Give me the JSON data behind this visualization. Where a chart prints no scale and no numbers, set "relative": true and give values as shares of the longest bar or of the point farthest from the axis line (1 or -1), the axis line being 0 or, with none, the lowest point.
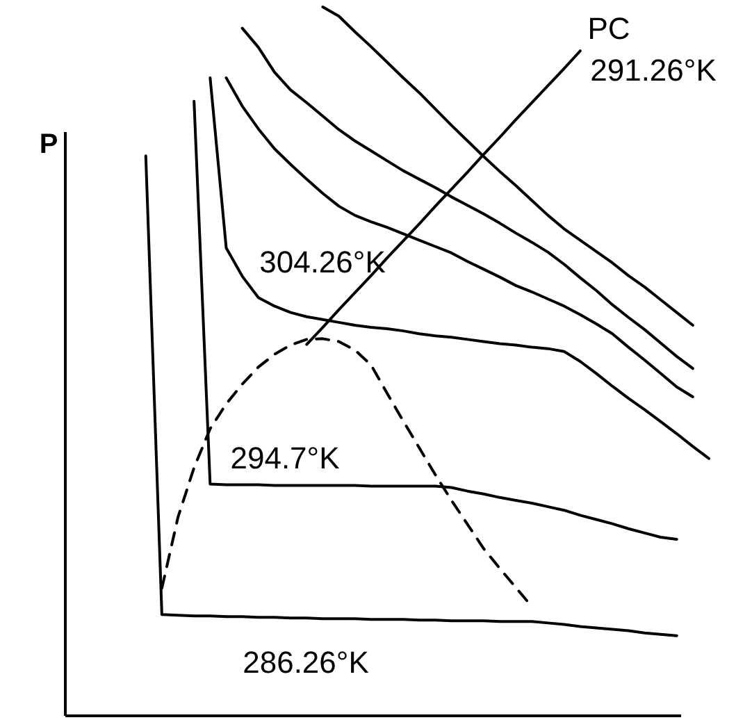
{
  "chart_data": {
    "type": "line",
    "relative": true,
    "ylabel": "P",
    "marker": "none",
    "categories": [
      null,
      null,
      null,
      null,
      null,
      null,
      null,
      null,
      null,
      null,
      null,
      null,
      null,
      null,
      null,
      null,
      null,
      null,
      null,
      null,
      null,
      null,
      null,
      null,
      null,
      null,
      null,
      null,
      null,
      null,
      null,
      null,
      null,
      null,
      null,
      null,
      null,
      null,
      null,
      null,
      null
    ],
    "series": [
      {
        "color": "#000000",
        "values": [
          null,
          null,
          null,
          null,
          null,
          0.79,
          0.143,
          0.142,
          0.141,
          0.141,
          0.14,
          0.14,
          0.139,
          0.139,
          0.138,
          0.138,
          0.137,
          0.137,
          0.137,
          0.136,
          0.136,
          0.136,
          0.135,
          0.135,
          0.134,
          0.134,
          0.134,
          0.133,
          0.133,
          0.133,
          0.131,
          0.129,
          0.126,
          0.124,
          0.122,
          0.12,
          0.117,
          0.115,
          0.113,
          null,
          null
        ]
      },
      {
        "color": "#000000",
        "values": [
          null,
          null,
          null,
          null,
          null,
          null,
          null,
          null,
          0.867,
          0.327,
          0.326,
          0.326,
          0.326,
          0.325,
          0.325,
          0.325,
          0.325,
          0.325,
          0.325,
          0.324,
          0.324,
          0.324,
          0.324,
          0.324,
          0.322,
          0.317,
          0.313,
          0.308,
          0.304,
          0.3,
          0.295,
          0.29,
          0.283,
          0.277,
          0.271,
          0.264,
          0.258,
          0.252,
          0.249,
          null,
          null
        ]
      },
      {
        "color": "#000000",
        "values": [
          null,
          null,
          null,
          null,
          null,
          null,
          null,
          null,
          null,
          0.9,
          0.66,
          0.62,
          0.59,
          0.578,
          0.569,
          0.563,
          0.559,
          0.555,
          0.551,
          0.548,
          0.546,
          0.543,
          0.539,
          0.536,
          0.534,
          0.531,
          0.528,
          0.525,
          0.523,
          0.52,
          0.518,
          0.514,
          0.5,
          0.483,
          0.465,
          0.448,
          0.432,
          0.415,
          0.398,
          0.38,
          0.363
        ]
      },
      {
        "color": "#000000",
        "values": [
          null,
          null,
          null,
          null,
          null,
          null,
          null,
          null,
          null,
          null,
          0.9,
          0.86,
          0.828,
          0.8,
          0.778,
          0.757,
          0.737,
          0.719,
          0.706,
          0.697,
          0.689,
          0.68,
          0.671,
          0.662,
          0.653,
          0.641,
          0.63,
          0.619,
          0.607,
          0.598,
          0.588,
          0.578,
          0.566,
          0.553,
          0.539,
          0.52,
          0.502,
          0.483,
          0.464,
          0.45,
          null
        ]
      },
      {
        "color": "#000000",
        "values": [
          null,
          null,
          null,
          null,
          null,
          null,
          null,
          null,
          null,
          null,
          null,
          0.97,
          0.943,
          0.908,
          0.883,
          0.865,
          0.846,
          0.827,
          0.811,
          0.797,
          0.783,
          0.769,
          0.757,
          0.745,
          0.732,
          0.72,
          0.708,
          0.695,
          0.681,
          0.668,
          0.654,
          0.637,
          0.618,
          0.6,
          0.58,
          0.562,
          0.545,
          0.526,
          0.507,
          0.49,
          null
        ]
      },
      {
        "color": "#000000",
        "values": [
          null,
          null,
          null,
          null,
          null,
          null,
          null,
          null,
          null,
          null,
          null,
          null,
          null,
          null,
          null,
          null,
          1.0,
          0.987,
          0.965,
          0.944,
          0.922,
          0.9,
          0.879,
          0.856,
          0.833,
          0.811,
          0.789,
          0.768,
          0.748,
          0.727,
          0.706,
          0.687,
          0.671,
          0.655,
          0.639,
          0.621,
          0.605,
          0.587,
          0.569,
          0.551,
          null
        ]
      },
      {
        "color": "#000000",
        "line_style": "dashed",
        "values": [
          null,
          null,
          null,
          null,
          null,
          null,
          0.18,
          0.28,
          0.35,
          0.405,
          0.44,
          0.468,
          0.492,
          0.51,
          0.523,
          0.531,
          0.532,
          0.528,
          0.516,
          0.495,
          0.455,
          0.416,
          0.378,
          0.34,
          0.304,
          0.27,
          0.236,
          0.208,
          0.181,
          0.154,
          null,
          null,
          null,
          null,
          null,
          null,
          null,
          null,
          null,
          null,
          null
        ]
      },
      {
        "color": "#000000",
        "values": [
          null,
          null,
          null,
          null,
          null,
          null,
          null,
          null,
          null,
          null,
          null,
          null,
          null,
          null,
          null,
          0.524,
          0.548,
          0.573,
          0.597,
          0.621,
          0.646,
          0.67,
          0.694,
          0.719,
          0.743,
          0.767,
          0.792,
          0.816,
          0.841,
          0.865,
          0.889,
          0.913,
          0.938,
          null,
          null,
          null,
          null,
          null,
          null,
          null,
          null
        ]
      }
    ],
    "annotations": [
      "304.26°K",
      "294.7°K",
      "286.26°K",
      "PC",
      "291.26°K"
    ]
  }
}
